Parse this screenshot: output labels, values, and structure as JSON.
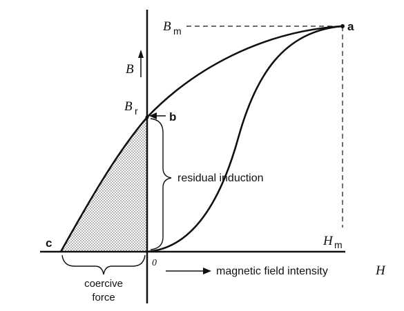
{
  "labels": {
    "point_a": "a",
    "point_b": "b",
    "point_c": "c",
    "bm_main": "B",
    "bm_sub": "m",
    "br_main": "B",
    "br_sub": "r",
    "hm_main": "H",
    "hm_sub": "m",
    "b_axis": "B",
    "origin": "0",
    "residual_induction": "residual induction",
    "coercive_line1": "coercive",
    "coercive_line2": "force",
    "h_axis_text": "magnetic field intensity",
    "h_axis_symbol": "H"
  },
  "colors": {
    "ink": "#111111",
    "shade": "#444444"
  }
}
